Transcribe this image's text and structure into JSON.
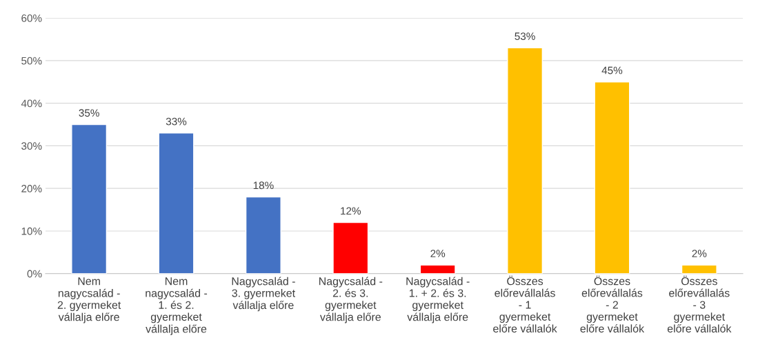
{
  "chart_data": {
    "type": "bar",
    "categories": [
      "Nem\nnagycsalád -\n2. gyermeket\nvállalja előre",
      "Nem\nnagycsalád -\n1. és 2.\ngyermeket\nvállalja előre",
      "Nagycsalád -\n3. gyermeket\nvállalja előre",
      "Nagycsalád -\n2. és 3.\ngyermeket\nvállalja előre",
      "Nagycsalád -\n1. + 2. és 3.\ngyermeket\nvállalja előre",
      "Összes\nelőrevállalás\n- 1\ngyermeket\nelőre vállalók",
      "Összes\nelőrevállalás\n- 2\ngyermeket\nelőre vállalók",
      "Összes\nelőrevállalás\n- 3\ngyermeket\nelőre vállalók"
    ],
    "values": [
      35,
      33,
      18,
      12,
      2,
      53,
      45,
      2
    ],
    "colors": [
      "#4472c4",
      "#4472c4",
      "#4472c4",
      "#ff0000",
      "#ff0000",
      "#ffc000",
      "#ffc000",
      "#ffc000"
    ],
    "value_labels": [
      "35%",
      "33%",
      "18%",
      "12%",
      "2%",
      "53%",
      "45%",
      "2%"
    ],
    "ylim": [
      0,
      60
    ],
    "yticks": [
      {
        "value": 0,
        "label": "0%"
      },
      {
        "value": 10,
        "label": "10%"
      },
      {
        "value": 20,
        "label": "20%"
      },
      {
        "value": 30,
        "label": "30%"
      },
      {
        "value": 40,
        "label": "40%"
      },
      {
        "value": 50,
        "label": "50%"
      },
      {
        "value": 60,
        "label": "60%"
      }
    ],
    "grid": "y"
  }
}
